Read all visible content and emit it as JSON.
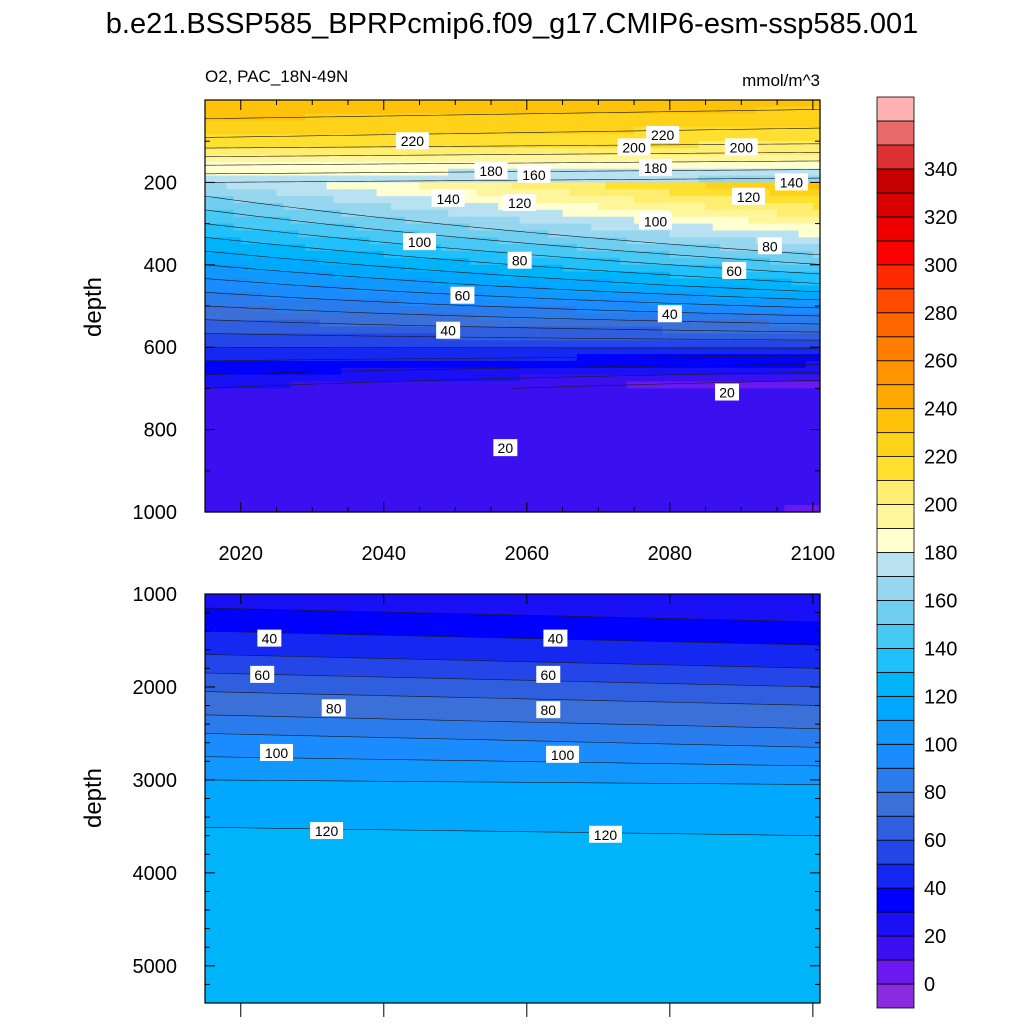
{
  "title": "b.e21.BSSP585_BPRPcmip6.f09_g17.CMIP6-esm-ssp585.001",
  "panel_left_title": "O2, PAC_18N-49N",
  "units": "mmol/m^3",
  "colors": {
    "levels": [
      -10,
      0,
      10,
      20,
      30,
      40,
      50,
      60,
      70,
      80,
      90,
      100,
      110,
      120,
      130,
      140,
      150,
      160,
      170,
      180,
      190,
      200,
      210,
      220,
      230,
      240,
      250,
      260,
      270,
      280,
      290,
      300,
      310,
      320,
      330,
      340,
      350,
      360
    ],
    "fills": [
      "#8a2be2",
      "#6a1aee",
      "#3a10f0",
      "#1a10f6",
      "#0000ff",
      "#1428f2",
      "#2446e8",
      "#2f5edf",
      "#3a70d8",
      "#2a7cec",
      "#1a8cff",
      "#1098ff",
      "#00a8ff",
      "#00b4fa",
      "#20c0fa",
      "#48c8f4",
      "#70cff0",
      "#96d6ef",
      "#b8e2f2",
      "#ffffd0",
      "#fff59a",
      "#ffee70",
      "#ffe030",
      "#ffd21a",
      "#ffc20a",
      "#ffa800",
      "#ff9300",
      "#ff7e00",
      "#ff6600",
      "#ff4a00",
      "#ff2a00",
      "#ff0000",
      "#ee0000",
      "#d80000",
      "#c40000",
      "#dd3030",
      "#e86a6a",
      "#ffb0b0"
    ]
  },
  "chart_data": [
    {
      "type": "contour",
      "panel": "upper",
      "title_left": "O2, PAC_18N-49N",
      "title_right": "mmol/m^3",
      "xlabel": "",
      "ylabel": "depth",
      "xlim": [
        2015,
        2101
      ],
      "ylim": [
        1000,
        0
      ],
      "xticks": [
        2020,
        2040,
        2060,
        2080,
        2100
      ],
      "yticks": [
        200,
        400,
        600,
        800,
        1000
      ],
      "x": [
        2015,
        2020,
        2030,
        2040,
        2050,
        2060,
        2070,
        2080,
        2090,
        2101
      ],
      "depth": [
        0,
        25,
        50,
        75,
        100,
        125,
        150,
        175,
        200,
        225,
        250,
        275,
        300,
        325,
        350,
        375,
        400,
        425,
        450,
        475,
        500,
        525,
        550,
        575,
        600,
        625,
        650,
        675,
        700,
        725,
        750,
        775,
        800,
        825,
        850,
        875,
        900,
        925,
        950,
        975,
        1000
      ],
      "contour_labels": [
        {
          "text": "220",
          "x": 2044,
          "depth": 100
        },
        {
          "text": "220",
          "x": 2079,
          "depth": 85
        },
        {
          "text": "200",
          "x": 2075,
          "depth": 115
        },
        {
          "text": "200",
          "x": 2090,
          "depth": 115
        },
        {
          "text": "180",
          "x": 2055,
          "depth": 172
        },
        {
          "text": "160",
          "x": 2061,
          "depth": 182
        },
        {
          "text": "180",
          "x": 2078,
          "depth": 165
        },
        {
          "text": "140",
          "x": 2097,
          "depth": 200
        },
        {
          "text": "140",
          "x": 2049,
          "depth": 240
        },
        {
          "text": "120",
          "x": 2059,
          "depth": 250
        },
        {
          "text": "120",
          "x": 2091,
          "depth": 235
        },
        {
          "text": "100",
          "x": 2078,
          "depth": 295
        },
        {
          "text": "100",
          "x": 2045,
          "depth": 345
        },
        {
          "text": "80",
          "x": 2094,
          "depth": 355
        },
        {
          "text": "80",
          "x": 2059,
          "depth": 390
        },
        {
          "text": "60",
          "x": 2089,
          "depth": 415
        },
        {
          "text": "60",
          "x": 2051,
          "depth": 475
        },
        {
          "text": "40",
          "x": 2080,
          "depth": 520
        },
        {
          "text": "40",
          "x": 2049,
          "depth": 560
        },
        {
          "text": "20",
          "x": 2088,
          "depth": 710
        },
        {
          "text": "20",
          "x": 2057,
          "depth": 845
        }
      ]
    },
    {
      "type": "contour",
      "panel": "lower",
      "xlabel": "",
      "ylabel": "depth",
      "xlim": [
        2015,
        2101
      ],
      "ylim": [
        5400,
        1000
      ],
      "yticks": [
        1000,
        2000,
        3000,
        4000,
        5000
      ],
      "x": [
        2015,
        2101
      ],
      "depth": [
        1000,
        5400
      ],
      "isolines": [
        {
          "value": 30,
          "depth_start": 1150,
          "depth_end": 1300
        },
        {
          "value": 40,
          "depth_start": 1400,
          "depth_end": 1550
        },
        {
          "value": 50,
          "depth_start": 1650,
          "depth_end": 1800
        },
        {
          "value": 60,
          "depth_start": 1850,
          "depth_end": 2000
        },
        {
          "value": 70,
          "depth_start": 2050,
          "depth_end": 2200
        },
        {
          "value": 80,
          "depth_start": 2300,
          "depth_end": 2450
        },
        {
          "value": 90,
          "depth_start": 2500,
          "depth_end": 2650
        },
        {
          "value": 100,
          "depth_start": 2750,
          "depth_end": 2850
        },
        {
          "value": 110,
          "depth_start": 3000,
          "depth_end": 3050
        },
        {
          "value": 120,
          "depth_start": 3510,
          "depth_end": 3600
        }
      ],
      "contour_labels": [
        {
          "text": "40",
          "x": 2024,
          "depth": 1480
        },
        {
          "text": "40",
          "x": 2064,
          "depth": 1480
        },
        {
          "text": "60",
          "x": 2023,
          "depth": 1870
        },
        {
          "text": "60",
          "x": 2063,
          "depth": 1870
        },
        {
          "text": "80",
          "x": 2033,
          "depth": 2230
        },
        {
          "text": "80",
          "x": 2063,
          "depth": 2250
        },
        {
          "text": "100",
          "x": 2025,
          "depth": 2710
        },
        {
          "text": "100",
          "x": 2065,
          "depth": 2730
        },
        {
          "text": "120",
          "x": 2032,
          "depth": 3550
        },
        {
          "text": "120",
          "x": 2071,
          "depth": 3590
        }
      ]
    }
  ],
  "colorbar": {
    "tick_labels": [
      "0",
      "20",
      "40",
      "60",
      "80",
      "100",
      "120",
      "140",
      "160",
      "180",
      "200",
      "220",
      "240",
      "260",
      "280",
      "300",
      "320",
      "340"
    ]
  }
}
